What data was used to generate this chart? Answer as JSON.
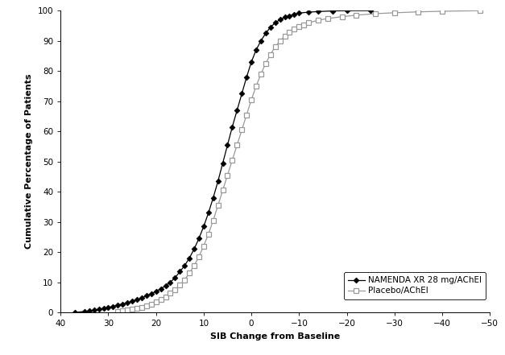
{
  "xlabel": "SIB Change from Baseline",
  "ylabel": "Cumulative Percentage of Patients",
  "xlim": [
    40,
    -50
  ],
  "ylim": [
    0,
    100
  ],
  "xticks": [
    40,
    30,
    20,
    10,
    0,
    -10,
    -20,
    -30,
    -40,
    -50
  ],
  "yticks": [
    0,
    10,
    20,
    30,
    40,
    50,
    60,
    70,
    80,
    90,
    100
  ],
  "namenda_x": [
    37,
    35,
    34,
    33,
    32,
    31,
    30,
    29,
    28,
    27,
    26,
    25,
    24,
    23,
    22,
    21,
    20,
    19,
    18,
    17,
    16,
    15,
    14,
    13,
    12,
    11,
    10,
    9,
    8,
    7,
    6,
    5,
    4,
    3,
    2,
    1,
    0,
    -1,
    -2,
    -3,
    -4,
    -5,
    -6,
    -7,
    -8,
    -9,
    -10,
    -12,
    -14,
    -17,
    -20,
    -25
  ],
  "namenda_y": [
    0,
    0.3,
    0.5,
    0.8,
    1.0,
    1.3,
    1.6,
    2.0,
    2.4,
    2.8,
    3.2,
    3.7,
    4.2,
    4.8,
    5.5,
    6.2,
    7.0,
    7.8,
    8.8,
    10.0,
    11.5,
    13.5,
    15.5,
    18.0,
    21.0,
    24.5,
    28.5,
    33.0,
    38.0,
    43.5,
    49.5,
    55.5,
    61.5,
    67.0,
    72.5,
    78.0,
    83.0,
    87.0,
    90.0,
    92.5,
    94.5,
    96.0,
    97.0,
    97.8,
    98.3,
    98.8,
    99.2,
    99.5,
    99.7,
    99.9,
    100.0,
    100.0
  ],
  "placebo_x": [
    28,
    27,
    26,
    25,
    24,
    23,
    22,
    21,
    20,
    19,
    18,
    17,
    16,
    15,
    14,
    13,
    12,
    11,
    10,
    9,
    8,
    7,
    6,
    5,
    4,
    3,
    2,
    1,
    0,
    -1,
    -2,
    -3,
    -4,
    -5,
    -6,
    -7,
    -8,
    -9,
    -10,
    -11,
    -12,
    -14,
    -16,
    -19,
    -22,
    -26,
    -30,
    -35,
    -40,
    -48
  ],
  "placebo_y": [
    0.3,
    0.5,
    0.8,
    1.0,
    1.3,
    1.7,
    2.2,
    2.8,
    3.5,
    4.3,
    5.2,
    6.3,
    7.5,
    9.0,
    10.8,
    13.0,
    15.5,
    18.5,
    22.0,
    26.0,
    30.5,
    35.5,
    40.5,
    45.5,
    50.5,
    55.5,
    60.5,
    65.5,
    70.5,
    75.0,
    79.0,
    82.5,
    85.5,
    88.0,
    90.0,
    91.5,
    92.8,
    93.8,
    94.6,
    95.3,
    96.0,
    96.8,
    97.4,
    98.0,
    98.5,
    99.0,
    99.3,
    99.6,
    99.8,
    100.0
  ],
  "namenda_color": "#000000",
  "placebo_color": "#999999",
  "legend_namenda": "NAMENDA XR 28 mg/AChEI",
  "legend_placebo": "Placebo/AChEI",
  "background_color": "#ffffff",
  "fontsize_axis_label": 8,
  "fontsize_tick": 7.5,
  "fontsize_legend": 7.5
}
